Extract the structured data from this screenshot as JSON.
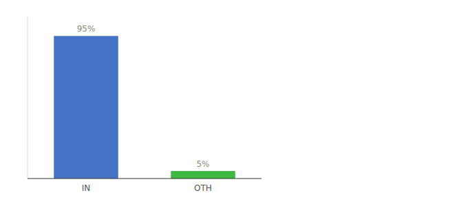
{
  "chart_data": {
    "type": "bar",
    "categories": [
      "IN",
      "OTH"
    ],
    "values": [
      95,
      5
    ],
    "colors": [
      "#4472c4",
      "#3cb843"
    ],
    "value_labels": [
      "95%",
      "5%"
    ],
    "data_labels": true,
    "ylim": [
      0,
      108
    ],
    "tick_labels": "x"
  }
}
